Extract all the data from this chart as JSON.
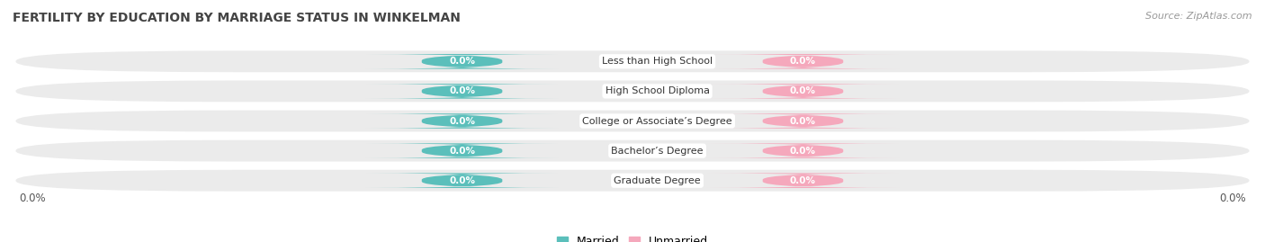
{
  "title": "FERTILITY BY EDUCATION BY MARRIAGE STATUS IN WINKELMAN",
  "source": "Source: ZipAtlas.com",
  "categories": [
    "Less than High School",
    "High School Diploma",
    "College or Associate’s Degree",
    "Bachelor’s Degree",
    "Graduate Degree"
  ],
  "married_values": [
    0.0,
    0.0,
    0.0,
    0.0,
    0.0
  ],
  "unmarried_values": [
    0.0,
    0.0,
    0.0,
    0.0,
    0.0
  ],
  "married_color": "#5bbfbb",
  "unmarried_color": "#f5a8bc",
  "row_bg_color": "#ebebeb",
  "title_fontsize": 10,
  "source_fontsize": 8,
  "legend_fontsize": 9,
  "value_fontsize": 7.5,
  "category_fontsize": 8,
  "x_axis_label_left": "0.0%",
  "x_axis_label_right": "0.0%"
}
